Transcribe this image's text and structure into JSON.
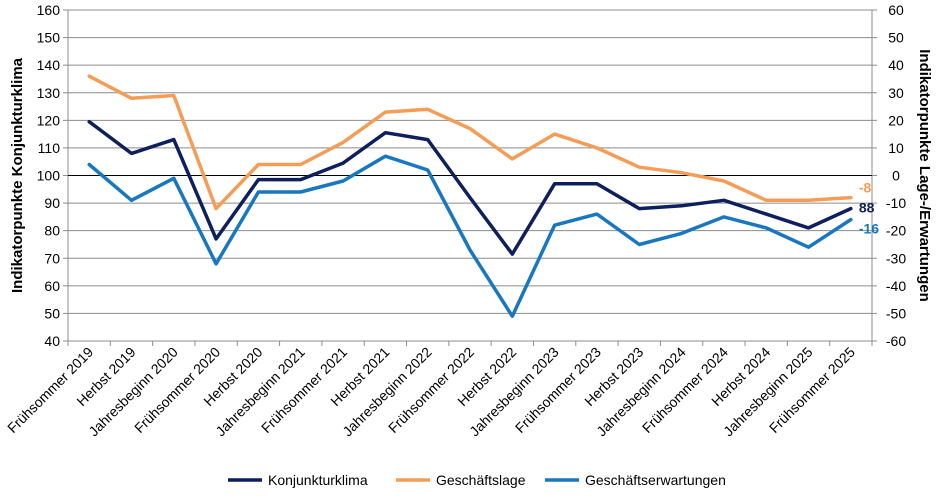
{
  "chart_data": {
    "type": "line",
    "title": "",
    "categories": [
      "Frühsommer 2019",
      "Herbst 2019",
      "Jahresbeginn 2020",
      "Frühsommer 2020",
      "Herbst 2020",
      "Jahresbeginn 2021",
      "Frühsommer 2021",
      "Herbst 2021",
      "Jahresbeginn 2022",
      "Frühsommer 2022",
      "Herbst 2022",
      "Jahresbeginn 2023",
      "Frühsommer 2023",
      "Herbst 2023",
      "Jahresbeginn 2024",
      "Frühsommer 2024",
      "Herbst 2024",
      "Jahresbeginn 2025",
      "Frühsommer 2025"
    ],
    "y_left": {
      "label": "Indikatorpunkte Konjunkturklima",
      "ylim": [
        40,
        160
      ],
      "ticks": [
        "40",
        "50",
        "60",
        "70",
        "80",
        "90",
        "100",
        "110",
        "120",
        "130",
        "140",
        "150",
        "160"
      ]
    },
    "y_right": {
      "label": "Indikatorpunkte Lage-/Erwartungen",
      "ylim": [
        -60,
        60
      ],
      "ticks": [
        "-60",
        "-50",
        "-40",
        "-30",
        "-20",
        "-10",
        "0",
        "10",
        "20",
        "30",
        "40",
        "50",
        "60"
      ]
    },
    "reference_line": {
      "axis": "left",
      "value": 100
    },
    "series": [
      {
        "name": "Konjunkturklima",
        "axis": "left",
        "color": "#0d1f5c",
        "values": [
          119.5,
          108,
          113,
          77,
          98.5,
          98.5,
          104.5,
          115.5,
          113,
          92,
          71.5,
          97,
          97,
          88,
          89,
          91,
          86,
          81,
          88
        ],
        "end_label": "88"
      },
      {
        "name": "Geschäftslage",
        "axis": "right",
        "color": "#f59d56",
        "values": [
          36,
          28,
          29,
          -12,
          4,
          4,
          12,
          23,
          24,
          17,
          6,
          15,
          10,
          3,
          1,
          -2,
          -9,
          -9,
          -8
        ],
        "end_label": "-8"
      },
      {
        "name": "Geschäftserwartungen",
        "axis": "right",
        "color": "#1877c1",
        "values": [
          4,
          -9,
          -1,
          -32,
          -6,
          -6,
          -2,
          7,
          2,
          -27,
          -51,
          -18,
          -14,
          -25,
          -21,
          -15,
          -19,
          -26,
          -16
        ],
        "end_label": "-16"
      }
    ],
    "legend": {
      "position": "bottom",
      "entries": [
        "Konjunkturklima",
        "Geschäftslage",
        "Geschäftserwartungen"
      ]
    },
    "grid": true
  }
}
